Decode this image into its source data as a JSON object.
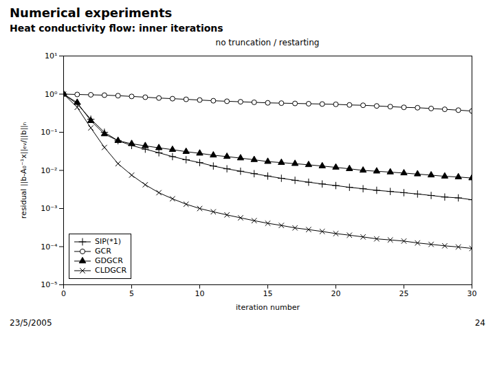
{
  "chart_data": {
    "type": "line",
    "title": "Numerical experiments",
    "subtitle": "Heat conductivity flow: inner iterations",
    "annotations": [
      "no truncation / restarting",
      "23/5/2005",
      "24"
    ],
    "xlabel": "iteration number",
    "ylabel": "residual ||b-A₀⁻¹x||ₑᵥ/||b||ₙ",
    "log": "y",
    "grid": false,
    "legend": "lower left",
    "xlim": [
      0,
      30
    ],
    "xticks": [
      0,
      5,
      10,
      15,
      20,
      25,
      30
    ],
    "ylim": [
      1e-05,
      10
    ],
    "yticks": [
      {
        "value": 1e-05,
        "label": "10⁻⁵"
      },
      {
        "value": 0.0001,
        "label": "10⁻⁴"
      },
      {
        "value": 0.001,
        "label": "10⁻³"
      },
      {
        "value": 0.01,
        "label": "10⁻²"
      },
      {
        "value": 0.1,
        "label": "10⁻¹"
      },
      {
        "value": 1,
        "label": "10⁰"
      },
      {
        "value": 10,
        "label": "10¹"
      }
    ],
    "x": [
      0,
      1,
      2,
      3,
      4,
      5,
      6,
      7,
      8,
      9,
      10,
      11,
      12,
      13,
      14,
      15,
      16,
      17,
      18,
      19,
      20,
      21,
      22,
      23,
      24,
      25,
      26,
      27,
      28,
      29,
      30
    ],
    "series": [
      {
        "name": "SIP(*1)",
        "color": "#000000",
        "marker": "plus",
        "line_style": "solid",
        "values": [
          1.0,
          0.55,
          0.22,
          0.1,
          0.06,
          0.045,
          0.036,
          0.029,
          0.023,
          0.019,
          0.016,
          0.013,
          0.011,
          0.0095,
          0.0082,
          0.0071,
          0.0062,
          0.0055,
          0.0049,
          0.0044,
          0.004,
          0.0036,
          0.0033,
          0.003,
          0.0028,
          0.0026,
          0.0024,
          0.0022,
          0.002,
          0.0019,
          0.0017
        ]
      },
      {
        "name": "GCR",
        "color": "#000000",
        "marker": "circle-open",
        "line_style": "solid",
        "values": [
          1.0,
          0.98,
          0.96,
          0.94,
          0.91,
          0.87,
          0.83,
          0.79,
          0.76,
          0.73,
          0.7,
          0.67,
          0.65,
          0.63,
          0.61,
          0.59,
          0.58,
          0.57,
          0.56,
          0.55,
          0.54,
          0.52,
          0.51,
          0.49,
          0.47,
          0.45,
          0.44,
          0.42,
          0.4,
          0.38,
          0.36
        ]
      },
      {
        "name": "GDGCR",
        "color": "#000000",
        "marker": "triangle",
        "line_style": "solid",
        "values": [
          1.0,
          0.6,
          0.2,
          0.09,
          0.06,
          0.05,
          0.044,
          0.039,
          0.035,
          0.031,
          0.028,
          0.025,
          0.023,
          0.021,
          0.019,
          0.017,
          0.016,
          0.015,
          0.014,
          0.013,
          0.012,
          0.011,
          0.01,
          0.0095,
          0.009,
          0.0085,
          0.008,
          0.0075,
          0.007,
          0.0067,
          0.0063
        ]
      },
      {
        "name": "CLDGCR",
        "color": "#000000",
        "marker": "times",
        "line_style": "solid",
        "values": [
          1.0,
          0.45,
          0.13,
          0.04,
          0.015,
          0.0075,
          0.0042,
          0.0026,
          0.0018,
          0.0013,
          0.001,
          0.00082,
          0.00068,
          0.00057,
          0.00048,
          0.00041,
          0.00036,
          0.00031,
          0.00028,
          0.00025,
          0.00022,
          0.0002,
          0.00018,
          0.00016,
          0.00015,
          0.00014,
          0.000125,
          0.000115,
          0.000105,
          9.8e-05,
          9e-05
        ]
      }
    ]
  }
}
